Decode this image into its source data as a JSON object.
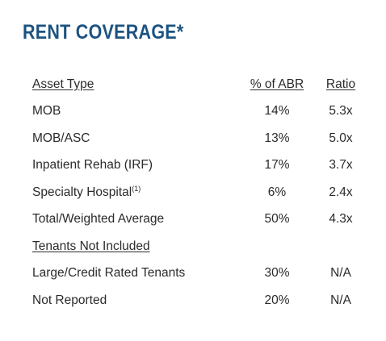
{
  "title": "RENT COVERAGE*",
  "table": {
    "headers": {
      "asset_type": "Asset Type",
      "pct_abr": "% of ABR",
      "ratio": "Ratio"
    },
    "rows": [
      {
        "asset_type": "MOB",
        "pct_abr": "14%",
        "ratio": "5.3x"
      },
      {
        "asset_type": "MOB/ASC",
        "pct_abr": "13%",
        "ratio": "5.0x"
      },
      {
        "asset_type": "Inpatient Rehab (IRF)",
        "pct_abr": "17%",
        "ratio": "3.7x"
      },
      {
        "asset_type": "Specialty Hospital",
        "footnote": "(1)",
        "pct_abr": "6%",
        "ratio": "2.4x"
      }
    ],
    "total": {
      "asset_type": "Total/Weighted Average",
      "pct_abr": "50%",
      "ratio": "4.3x"
    },
    "not_included_header": "Tenants Not Included",
    "not_included_rows": [
      {
        "asset_type": "Large/Credit Rated Tenants",
        "pct_abr": "30%",
        "ratio": "N/A"
      },
      {
        "asset_type": "Not Reported",
        "pct_abr": "20%",
        "ratio": "N/A"
      }
    ]
  }
}
